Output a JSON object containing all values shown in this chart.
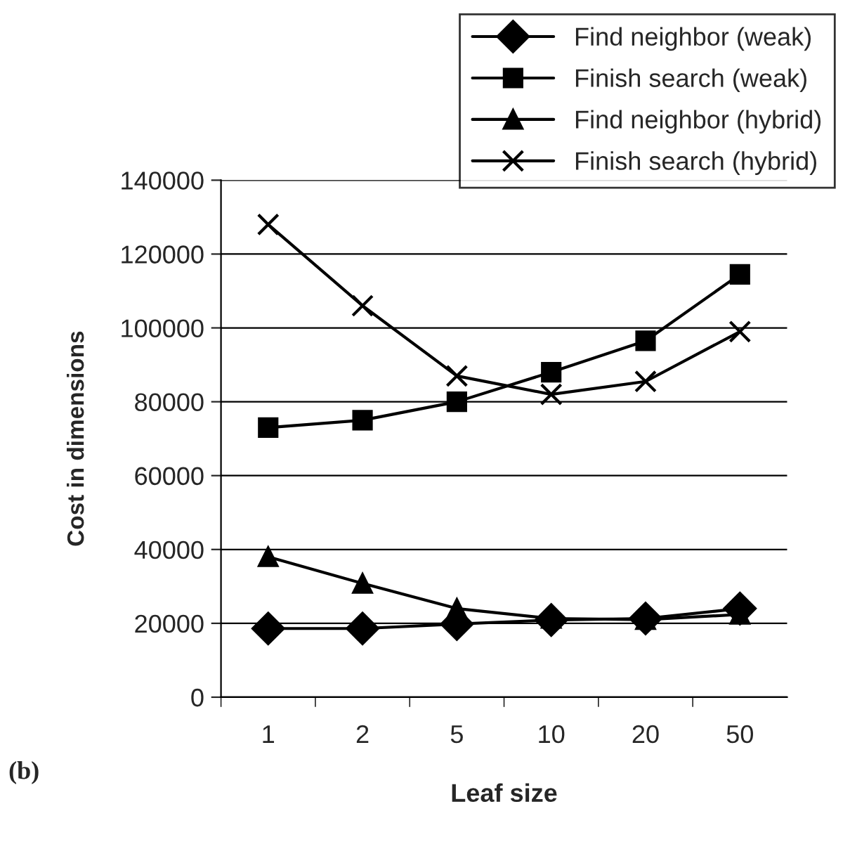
{
  "chart_data": {
    "type": "line",
    "xlabel": "Leaf size",
    "ylabel": "Cost in dimensions",
    "categories": [
      "1",
      "2",
      "5",
      "10",
      "20",
      "50"
    ],
    "series": [
      {
        "name": "Find neighbor (weak)",
        "color": "#000000",
        "marker": "diamond",
        "values": [
          18600,
          18600,
          19800,
          20900,
          21300,
          24000
        ]
      },
      {
        "name": "Finish search (weak)",
        "color": "#000000",
        "marker": "square",
        "values": [
          73000,
          75000,
          80000,
          88000,
          96500,
          114500
        ]
      },
      {
        "name": "Find neighbor (hybrid)",
        "color": "#000000",
        "marker": "triangle",
        "values": [
          38000,
          30800,
          24000,
          21300,
          21000,
          22400
        ]
      },
      {
        "name": "Finish search (hybrid)",
        "color": "#000000",
        "marker": "cross",
        "values": [
          128000,
          106000,
          87000,
          82000,
          85500,
          99000
        ]
      }
    ],
    "ylim": [
      0,
      140000
    ],
    "yticks": [
      0,
      20000,
      40000,
      60000,
      80000,
      100000,
      120000,
      140000
    ],
    "grid": "y",
    "legend": "top right",
    "line_style": "solid",
    "annotations": [
      "(b)"
    ]
  }
}
